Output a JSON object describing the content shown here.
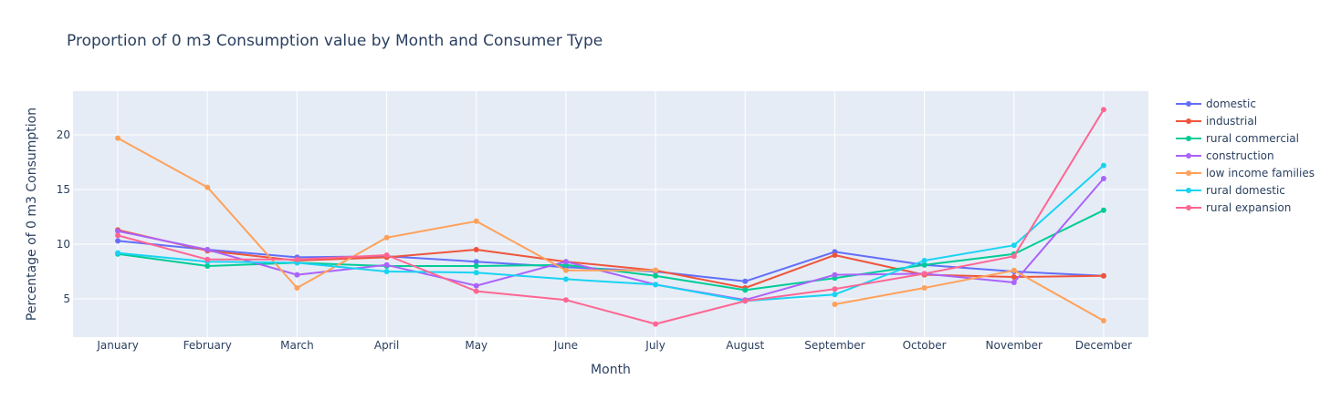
{
  "chart_data": {
    "type": "line",
    "title": "Proportion of 0 m3 Consumption value by Month and Consumer Type",
    "xlabel": "Month",
    "ylabel": "Percentage of 0 m3 Consumption",
    "categories": [
      "January",
      "February",
      "March",
      "April",
      "May",
      "June",
      "July",
      "August",
      "September",
      "October",
      "November",
      "December"
    ],
    "ylim": [
      1.5,
      24.0
    ],
    "yticks": [
      5,
      10,
      15,
      20
    ],
    "grid": true,
    "legend_position": "right",
    "background": "#e5ecf6",
    "series": [
      {
        "name": "domestic",
        "color": "#636efa",
        "values": [
          10.3,
          9.5,
          8.8,
          8.9,
          8.4,
          7.9,
          7.5,
          6.6,
          9.3,
          8.1,
          7.5,
          7.1
        ]
      },
      {
        "name": "industrial",
        "color": "#ef553b",
        "values": [
          11.3,
          9.4,
          8.5,
          8.8,
          9.5,
          8.4,
          7.6,
          6.0,
          9.0,
          7.2,
          7.0,
          7.1
        ]
      },
      {
        "name": "rural commercial",
        "color": "#00cc96",
        "values": [
          9.1,
          8.0,
          8.3,
          8.0,
          8.0,
          8.1,
          7.1,
          5.8,
          6.9,
          8.1,
          9.1,
          13.1
        ]
      },
      {
        "name": "construction",
        "color": "#ab63fa",
        "values": [
          11.2,
          9.5,
          7.2,
          8.1,
          6.2,
          8.4,
          6.3,
          4.9,
          7.2,
          7.3,
          6.5,
          16.0
        ]
      },
      {
        "name": "low income families",
        "color": "#ffa15a",
        "values": [
          19.7,
          15.2,
          6.0,
          10.6,
          12.1,
          7.6,
          7.6,
          null,
          4.5,
          6.0,
          7.6,
          3.0
        ]
      },
      {
        "name": "rural domestic",
        "color": "#19d3f3",
        "values": [
          9.2,
          8.4,
          8.3,
          7.5,
          7.4,
          6.8,
          6.3,
          4.8,
          5.4,
          8.5,
          9.9,
          17.2
        ]
      },
      {
        "name": "rural expansion",
        "color": "#ff6692",
        "values": [
          10.8,
          8.6,
          8.6,
          9.0,
          5.7,
          4.9,
          2.7,
          4.8,
          5.9,
          7.3,
          8.9,
          22.3
        ]
      }
    ]
  }
}
